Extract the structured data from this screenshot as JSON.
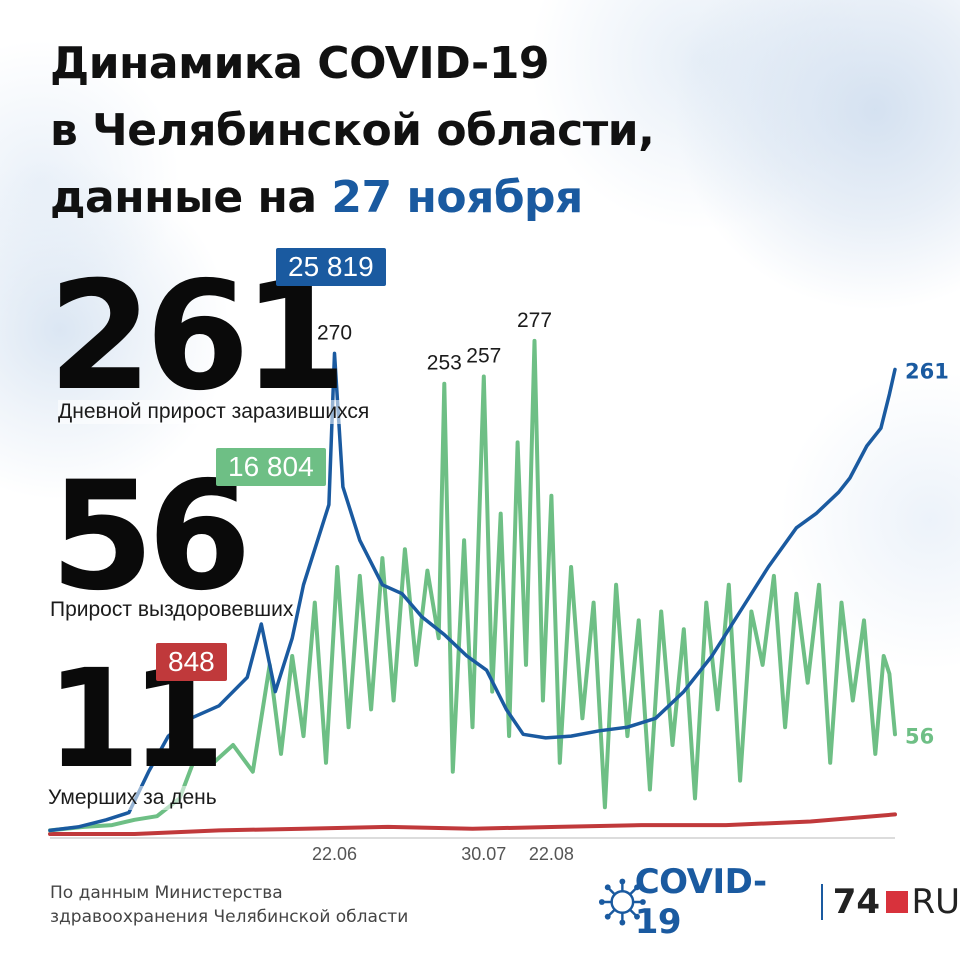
{
  "title": {
    "line1": "Динамика COVID-19",
    "line2": "в Челябинской области,",
    "line3_prefix": "данные на ",
    "line3_date": "27 ноября"
  },
  "stats": {
    "infected": {
      "value": "261",
      "caption": "Дневной прирост заразившихся",
      "total": "25 819"
    },
    "recovered": {
      "value": "56",
      "caption": "Прирост выздоровевших",
      "total": "16 804"
    },
    "deaths": {
      "value": "11",
      "caption": "Умерших за день",
      "total": "848"
    }
  },
  "footer": {
    "line1": "По данным Министерства",
    "line2": "здравоохранения Челябинской области"
  },
  "brand": {
    "covid": "COVID-19",
    "num": "74",
    "ru": "RU"
  },
  "colors": {
    "infected": "#1a5aa0",
    "recovered": "#6ebf85",
    "deaths": "#c0393b"
  },
  "chart_data": {
    "type": "line",
    "x_ticks": [
      "22.06",
      "30.07",
      "22.08"
    ],
    "annotations": [
      {
        "series": "infected",
        "label": "270",
        "value": 270,
        "day": 101
      },
      {
        "series": "recovered",
        "label": "253",
        "value": 253,
        "day": 140
      },
      {
        "series": "recovered",
        "label": "257",
        "value": 257,
        "day": 154
      },
      {
        "series": "recovered",
        "label": "277",
        "value": 277,
        "day": 172
      }
    ],
    "end_labels": {
      "infected": "261",
      "recovered": "56"
    },
    "ylim": [
      0,
      300
    ],
    "series": [
      {
        "key": "infected",
        "points": [
          [
            0,
            2
          ],
          [
            10,
            4
          ],
          [
            20,
            8
          ],
          [
            28,
            12
          ],
          [
            35,
            35
          ],
          [
            42,
            55
          ],
          [
            50,
            65
          ],
          [
            60,
            72
          ],
          [
            70,
            88
          ],
          [
            75,
            118
          ],
          [
            80,
            80
          ],
          [
            86,
            110
          ],
          [
            90,
            140
          ],
          [
            95,
            165
          ],
          [
            99,
            185
          ],
          [
            101,
            270
          ],
          [
            104,
            195
          ],
          [
            110,
            165
          ],
          [
            118,
            140
          ],
          [
            125,
            135
          ],
          [
            132,
            122
          ],
          [
            140,
            112
          ],
          [
            148,
            100
          ],
          [
            155,
            92
          ],
          [
            162,
            70
          ],
          [
            168,
            56
          ],
          [
            176,
            54
          ],
          [
            185,
            55
          ],
          [
            195,
            58
          ],
          [
            205,
            60
          ],
          [
            215,
            65
          ],
          [
            225,
            80
          ],
          [
            235,
            100
          ],
          [
            245,
            125
          ],
          [
            255,
            150
          ],
          [
            265,
            172
          ],
          [
            272,
            180
          ],
          [
            280,
            192
          ],
          [
            284,
            200
          ],
          [
            290,
            218
          ],
          [
            295,
            228
          ],
          [
            298,
            247
          ],
          [
            300,
            261
          ]
        ]
      },
      {
        "key": "recovered",
        "points": [
          [
            0,
            2
          ],
          [
            12,
            4
          ],
          [
            22,
            5
          ],
          [
            30,
            8
          ],
          [
            38,
            10
          ],
          [
            46,
            20
          ],
          [
            52,
            45
          ],
          [
            58,
            40
          ],
          [
            65,
            50
          ],
          [
            72,
            35
          ],
          [
            78,
            95
          ],
          [
            82,
            45
          ],
          [
            86,
            100
          ],
          [
            90,
            55
          ],
          [
            94,
            130
          ],
          [
            98,
            40
          ],
          [
            102,
            150
          ],
          [
            106,
            60
          ],
          [
            110,
            145
          ],
          [
            114,
            70
          ],
          [
            118,
            155
          ],
          [
            122,
            75
          ],
          [
            126,
            160
          ],
          [
            130,
            95
          ],
          [
            134,
            148
          ],
          [
            138,
            110
          ],
          [
            140,
            253
          ],
          [
            143,
            35
          ],
          [
            147,
            165
          ],
          [
            150,
            60
          ],
          [
            154,
            257
          ],
          [
            157,
            80
          ],
          [
            160,
            180
          ],
          [
            163,
            55
          ],
          [
            166,
            220
          ],
          [
            169,
            95
          ],
          [
            172,
            277
          ],
          [
            175,
            75
          ],
          [
            178,
            190
          ],
          [
            181,
            40
          ],
          [
            185,
            150
          ],
          [
            189,
            65
          ],
          [
            193,
            130
          ],
          [
            197,
            15
          ],
          [
            201,
            140
          ],
          [
            205,
            55
          ],
          [
            209,
            120
          ],
          [
            213,
            25
          ],
          [
            217,
            125
          ],
          [
            221,
            50
          ],
          [
            225,
            115
          ],
          [
            229,
            20
          ],
          [
            233,
            130
          ],
          [
            237,
            70
          ],
          [
            241,
            140
          ],
          [
            245,
            30
          ],
          [
            249,
            125
          ],
          [
            253,
            95
          ],
          [
            257,
            145
          ],
          [
            261,
            60
          ],
          [
            265,
            135
          ],
          [
            269,
            85
          ],
          [
            273,
            140
          ],
          [
            277,
            40
          ],
          [
            281,
            130
          ],
          [
            285,
            75
          ],
          [
            289,
            120
          ],
          [
            293,
            45
          ],
          [
            296,
            100
          ],
          [
            298,
            90
          ],
          [
            300,
            56
          ]
        ]
      },
      {
        "key": "deaths",
        "points": [
          [
            0,
            0
          ],
          [
            30,
            0
          ],
          [
            60,
            2
          ],
          [
            90,
            3
          ],
          [
            120,
            4
          ],
          [
            150,
            3
          ],
          [
            180,
            4
          ],
          [
            210,
            5
          ],
          [
            240,
            5
          ],
          [
            270,
            7
          ],
          [
            300,
            11
          ]
        ]
      }
    ]
  }
}
